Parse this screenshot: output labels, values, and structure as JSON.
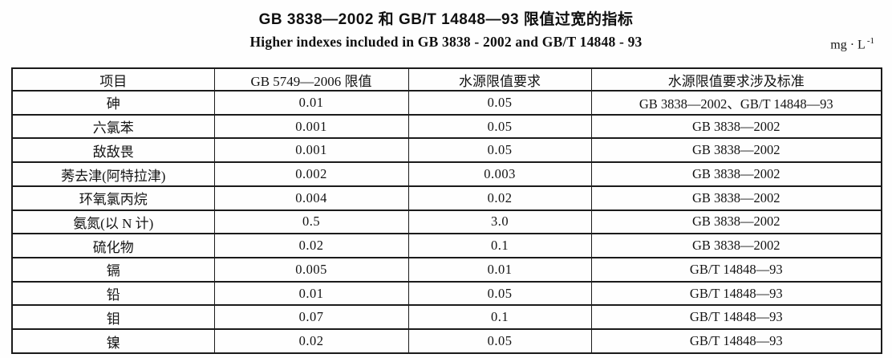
{
  "page": {
    "title_cn": "GB 3838—2002 和 GB/T 14848—93 限值过宽的指标",
    "title_en": "Higher indexes included in GB 3838 - 2002 and GB/T 14848 - 93",
    "unit_base": "mg · L",
    "unit_sup": "-1"
  },
  "table": {
    "headers": [
      "项目",
      "GB 5749—2006 限值",
      "水源限值要求",
      "水源限值要求涉及标准"
    ],
    "rows": [
      [
        "砷",
        "0.01",
        "0.05",
        "GB 3838—2002、GB/T 14848—93"
      ],
      [
        "六氯苯",
        "0.001",
        "0.05",
        "GB 3838—2002"
      ],
      [
        "敌敌畏",
        "0.001",
        "0.05",
        "GB 3838—2002"
      ],
      [
        "莠去津(阿特拉津)",
        "0.002",
        "0.003",
        "GB 3838—2002"
      ],
      [
        "环氧氯丙烷",
        "0.004",
        "0.02",
        "GB 3838—2002"
      ],
      [
        "氨氮(以 N 计)",
        "0.5",
        "3.0",
        "GB 3838—2002"
      ],
      [
        "硫化物",
        "0.02",
        "0.1",
        "GB 3838—2002"
      ],
      [
        "镉",
        "0.005",
        "0.01",
        "GB/T 14848—93"
      ],
      [
        "铅",
        "0.01",
        "0.05",
        "GB/T 14848—93"
      ],
      [
        "钼",
        "0.07",
        "0.1",
        "GB/T 14848—93"
      ],
      [
        "镍",
        "0.02",
        "0.05",
        "GB/T 14848—93"
      ]
    ]
  }
}
